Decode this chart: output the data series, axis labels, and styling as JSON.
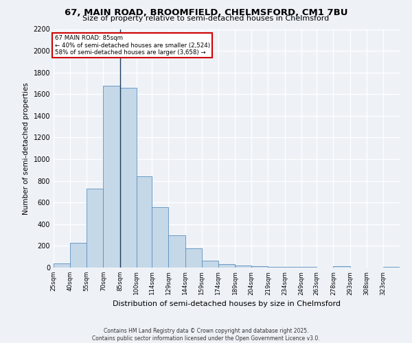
{
  "title": "67, MAIN ROAD, BROOMFIELD, CHELMSFORD, CM1 7BU",
  "subtitle": "Size of property relative to semi-detached houses in Chelmsford",
  "xlabel": "Distribution of semi-detached houses by size in Chelmsford",
  "ylabel": "Number of semi-detached properties",
  "categories": [
    "25sqm",
    "40sqm",
    "55sqm",
    "70sqm",
    "85sqm",
    "100sqm",
    "114sqm",
    "129sqm",
    "144sqm",
    "159sqm",
    "174sqm",
    "189sqm",
    "204sqm",
    "219sqm",
    "234sqm",
    "249sqm",
    "263sqm",
    "278sqm",
    "293sqm",
    "308sqm",
    "323sqm"
  ],
  "bin_edges": [
    25,
    40,
    55,
    70,
    85,
    100,
    114,
    129,
    144,
    159,
    174,
    189,
    204,
    219,
    234,
    249,
    263,
    278,
    293,
    308,
    323
  ],
  "bar_heights": [
    35,
    225,
    730,
    1680,
    1660,
    845,
    560,
    295,
    180,
    65,
    30,
    18,
    12,
    8,
    5,
    4,
    0,
    10,
    0,
    0,
    5
  ],
  "bar_color": "#c5d8e8",
  "bar_edge_color": "#5a8fbf",
  "property_value": 85,
  "vline_color": "#1a3a5c",
  "annotation_text_line1": "67 MAIN ROAD: 85sqm",
  "annotation_text_line2": "← 40% of semi-detached houses are smaller (2,524)",
  "annotation_text_line3": "58% of semi-detached houses are larger (3,658) →",
  "annotation_box_color": "#ffffff",
  "annotation_box_edge": "#cc0000",
  "ylim": [
    0,
    2200
  ],
  "yticks": [
    0,
    200,
    400,
    600,
    800,
    1000,
    1200,
    1400,
    1600,
    1800,
    2000,
    2200
  ],
  "background_color": "#eef2f7",
  "grid_color": "#ffffff",
  "footer_line1": "Contains HM Land Registry data © Crown copyright and database right 2025.",
  "footer_line2": "Contains public sector information licensed under the Open Government Licence v3.0."
}
